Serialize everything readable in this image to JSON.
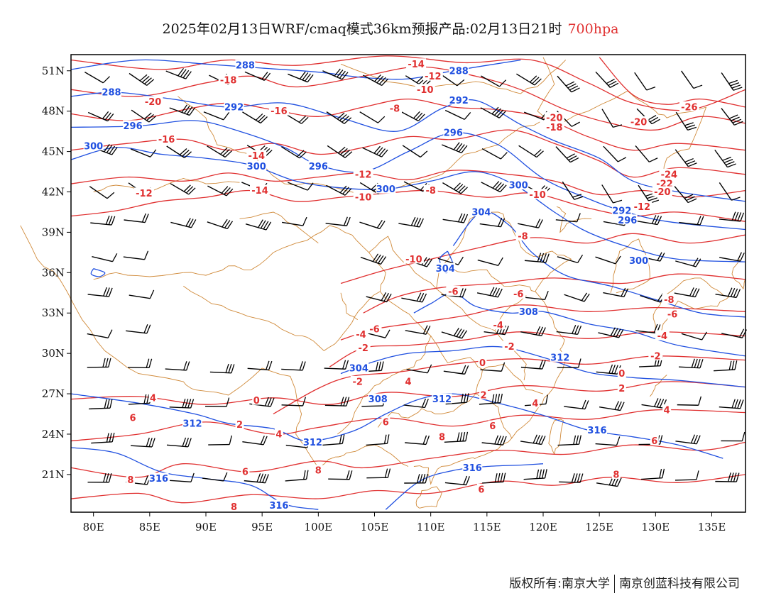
{
  "title": {
    "text": "2025年02月13日WRF/cmaq模式36km预报产品:02月13日21时",
    "level": "700hpa"
  },
  "colors": {
    "temperature": "#e03030",
    "height": "#2050e0",
    "boundary": "#d08a3a",
    "wind": "#000000"
  },
  "axes": {
    "lon_ticks": [
      "80E",
      "85E",
      "90E",
      "95E",
      "100E",
      "105E",
      "110E",
      "115E",
      "120E",
      "125E",
      "130E",
      "135E"
    ],
    "lat_ticks": [
      "51N",
      "48N",
      "45N",
      "42N",
      "39N",
      "36N",
      "33N",
      "30N",
      "27N",
      "24N",
      "21N"
    ]
  },
  "map_data": {
    "extent": {
      "lon": [
        78,
        138
      ],
      "lat": [
        18.2,
        52.2
      ]
    },
    "height_labels": [
      {
        "text": "288",
        "lon": 93.5,
        "lat": 51.4
      },
      {
        "text": "288",
        "lon": 112.5,
        "lat": 51.0
      },
      {
        "text": "288",
        "lon": 81.6,
        "lat": 49.4
      },
      {
        "text": "292",
        "lon": 92.5,
        "lat": 48.3
      },
      {
        "text": "292",
        "lon": 112.5,
        "lat": 48.8
      },
      {
        "text": "296",
        "lon": 83.5,
        "lat": 46.9
      },
      {
        "text": "296",
        "lon": 112.0,
        "lat": 46.4
      },
      {
        "text": "300",
        "lon": 80.0,
        "lat": 45.4
      },
      {
        "text": "296",
        "lon": 100.0,
        "lat": 43.9
      },
      {
        "text": "300",
        "lon": 94.5,
        "lat": 43.9
      },
      {
        "text": "300",
        "lon": 106.0,
        "lat": 42.2
      },
      {
        "text": "300",
        "lon": 117.8,
        "lat": 42.5
      },
      {
        "text": "304",
        "lon": 114.5,
        "lat": 40.5
      },
      {
        "text": "292",
        "lon": 127.0,
        "lat": 40.6
      },
      {
        "text": "296",
        "lon": 127.5,
        "lat": 39.9
      },
      {
        "text": "300",
        "lon": 128.5,
        "lat": 36.9
      },
      {
        "text": "304",
        "lon": 111.3,
        "lat": 36.3
      },
      {
        "text": "308",
        "lon": 118.7,
        "lat": 33.1
      },
      {
        "text": "304",
        "lon": 103.6,
        "lat": 28.9
      },
      {
        "text": "308",
        "lon": 105.3,
        "lat": 26.6
      },
      {
        "text": "312",
        "lon": 111.0,
        "lat": 26.6
      },
      {
        "text": "312",
        "lon": 121.5,
        "lat": 29.7
      },
      {
        "text": "312",
        "lon": 88.8,
        "lat": 24.8
      },
      {
        "text": "312",
        "lon": 99.5,
        "lat": 23.4
      },
      {
        "text": "316",
        "lon": 124.8,
        "lat": 24.3
      },
      {
        "text": "316",
        "lon": 113.7,
        "lat": 21.5
      },
      {
        "text": "316",
        "lon": 85.8,
        "lat": 20.7
      },
      {
        "text": "316",
        "lon": 96.5,
        "lat": 18.7
      }
    ],
    "temp_labels": [
      {
        "text": "-14",
        "lon": 108.7,
        "lat": 51.5
      },
      {
        "text": "-12",
        "lon": 110.2,
        "lat": 50.6
      },
      {
        "text": "-10",
        "lon": 109.5,
        "lat": 49.6
      },
      {
        "text": "-18",
        "lon": 92.0,
        "lat": 50.3
      },
      {
        "text": "-20",
        "lon": 85.3,
        "lat": 48.7
      },
      {
        "text": "-16",
        "lon": 96.5,
        "lat": 48.0
      },
      {
        "text": "-8",
        "lon": 106.8,
        "lat": 48.2
      },
      {
        "text": "-20",
        "lon": 121.0,
        "lat": 47.5
      },
      {
        "text": "-18",
        "lon": 121.0,
        "lat": 46.8
      },
      {
        "text": "-20",
        "lon": 128.5,
        "lat": 47.2
      },
      {
        "text": "-26",
        "lon": 133.0,
        "lat": 48.3
      },
      {
        "text": "-16",
        "lon": 86.5,
        "lat": 45.9
      },
      {
        "text": "-14",
        "lon": 94.5,
        "lat": 44.7
      },
      {
        "text": "-12",
        "lon": 104.0,
        "lat": 43.3
      },
      {
        "text": "-24",
        "lon": 131.2,
        "lat": 43.3
      },
      {
        "text": "-22",
        "lon": 130.8,
        "lat": 42.6
      },
      {
        "text": "-20",
        "lon": 130.6,
        "lat": 42.0
      },
      {
        "text": "-12",
        "lon": 84.5,
        "lat": 41.9
      },
      {
        "text": "-14",
        "lon": 94.8,
        "lat": 42.1
      },
      {
        "text": "-10",
        "lon": 104.0,
        "lat": 41.6
      },
      {
        "text": "-8",
        "lon": 110.0,
        "lat": 42.1
      },
      {
        "text": "-10",
        "lon": 119.5,
        "lat": 41.8
      },
      {
        "text": "-12",
        "lon": 128.8,
        "lat": 40.9
      },
      {
        "text": "-8",
        "lon": 118.2,
        "lat": 38.7
      },
      {
        "text": "-10",
        "lon": 108.5,
        "lat": 37.0
      },
      {
        "text": "-6",
        "lon": 112.0,
        "lat": 34.6
      },
      {
        "text": "-6",
        "lon": 117.8,
        "lat": 34.4
      },
      {
        "text": "-8",
        "lon": 131.2,
        "lat": 34.0
      },
      {
        "text": "-6",
        "lon": 131.5,
        "lat": 32.9
      },
      {
        "text": "-4",
        "lon": 116.0,
        "lat": 32.1
      },
      {
        "text": "-6",
        "lon": 105.0,
        "lat": 31.8
      },
      {
        "text": "-4",
        "lon": 103.8,
        "lat": 31.4
      },
      {
        "text": "-4",
        "lon": 130.6,
        "lat": 31.3
      },
      {
        "text": "-2",
        "lon": 104.0,
        "lat": 30.4
      },
      {
        "text": "-2",
        "lon": 117.0,
        "lat": 30.5
      },
      {
        "text": "-2",
        "lon": 130.0,
        "lat": 29.8
      },
      {
        "text": "0",
        "lon": 114.6,
        "lat": 29.3
      },
      {
        "text": "0",
        "lon": 127.0,
        "lat": 28.5
      },
      {
        "text": "-2",
        "lon": 103.5,
        "lat": 27.9
      },
      {
        "text": "4",
        "lon": 108.0,
        "lat": 27.9
      },
      {
        "text": "2",
        "lon": 114.7,
        "lat": 26.9
      },
      {
        "text": "2",
        "lon": 127.0,
        "lat": 27.4
      },
      {
        "text": "4",
        "lon": 85.3,
        "lat": 26.7
      },
      {
        "text": "0",
        "lon": 94.5,
        "lat": 26.5
      },
      {
        "text": "4",
        "lon": 119.3,
        "lat": 26.3
      },
      {
        "text": "4",
        "lon": 131.0,
        "lat": 25.8
      },
      {
        "text": "6",
        "lon": 83.5,
        "lat": 25.2
      },
      {
        "text": "6",
        "lon": 106.0,
        "lat": 24.9
      },
      {
        "text": "6",
        "lon": 115.5,
        "lat": 24.6
      },
      {
        "text": "2",
        "lon": 93.0,
        "lat": 24.7
      },
      {
        "text": "4",
        "lon": 96.5,
        "lat": 24.0
      },
      {
        "text": "8",
        "lon": 111.0,
        "lat": 23.8
      },
      {
        "text": "6",
        "lon": 129.9,
        "lat": 23.5
      },
      {
        "text": "6",
        "lon": 93.5,
        "lat": 21.2
      },
      {
        "text": "8",
        "lon": 100.0,
        "lat": 21.3
      },
      {
        "text": "8",
        "lon": 126.5,
        "lat": 21.0
      },
      {
        "text": "8",
        "lon": 83.3,
        "lat": 20.6
      },
      {
        "text": "6",
        "lon": 114.5,
        "lat": 19.9
      },
      {
        "text": "8",
        "lon": 92.5,
        "lat": 18.6
      }
    ]
  },
  "footer": {
    "left": "版权所有:南京大学",
    "right": "南京创蓝科技有限公司"
  }
}
